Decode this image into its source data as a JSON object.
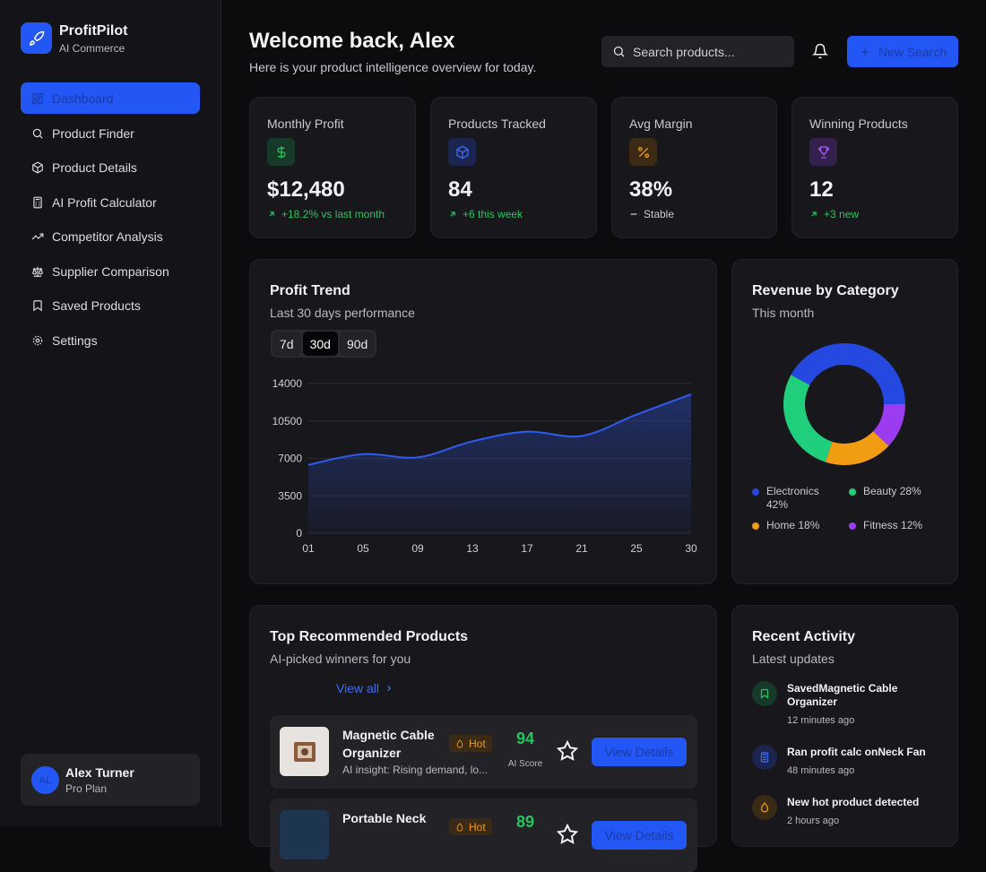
{
  "sidebar": {
    "brand": "ProfitPilot",
    "tagline": "AI Commerce",
    "nav": [
      "Dashboard",
      "Product Finder",
      "Product Details",
      "AI Profit Calculator",
      "Competitor Analysis",
      "Supplier Comparison",
      "Saved Products",
      "Settings"
    ],
    "user": {
      "initials": "AL",
      "name": "Alex Turner",
      "plan": "Pro Plan"
    }
  },
  "header": {
    "title": "Welcome back, Alex",
    "subtitle": "Here is your product intelligence overview for today.",
    "search_placeholder": "Search products...",
    "button": "New Search"
  },
  "stats": [
    {
      "label": "Monthly Profit",
      "value": "$12,480",
      "change": "+18.2% vs last month"
    },
    {
      "label": "Products Tracked",
      "value": "84",
      "change": "+6 this week"
    },
    {
      "label": "Avg Margin",
      "value": "38%",
      "change": "Stable"
    },
    {
      "label": "Winning Products",
      "value": "12",
      "change": "+3 new"
    }
  ],
  "profit_trend": {
    "ranges": [
      "7d",
      "30d",
      "90d"
    ]
  },
  "chart_data": [
    {
      "type": "area",
      "title": "Profit Trend",
      "subtitle": "Last 30 days performance",
      "categories": [
        "01",
        "05",
        "09",
        "13",
        "17",
        "21",
        "25",
        "30"
      ],
      "values": [
        6400,
        7400,
        7100,
        8600,
        9500,
        9100,
        11100,
        13000
      ],
      "color": "#2f5bf0",
      "ylim": [
        0,
        14000
      ],
      "yticks": [
        0,
        3500,
        7000,
        10500,
        14000
      ],
      "grid": true
    },
    {
      "type": "donut",
      "title": "Revenue by Category",
      "subtitle": "This month",
      "categories": [
        "Electronics",
        "Beauty",
        "Home",
        "Fitness"
      ],
      "values": [
        42,
        28,
        18,
        12
      ],
      "value_labels": [
        "42%",
        "28%",
        "18%",
        "12%"
      ],
      "colors": [
        "#2448e0",
        "#1fcf7c",
        "#f29c12",
        "#9b3cf0"
      ],
      "start_angle": 90,
      "direction": "counterclockwise"
    }
  ],
  "products": {
    "title": "Top Recommended Products",
    "subtitle": "AI-picked winners for you",
    "view_all": "View all",
    "items": [
      {
        "name": "Magnetic Cable Organizer",
        "badge": "Hot",
        "insight": "AI insight: Rising demand, lo...",
        "score": 94,
        "score_label": "AI Score",
        "button": "View Details"
      },
      {
        "name": "Portable Neck",
        "badge": "Hot",
        "score": 89,
        "button": "View Details"
      }
    ]
  },
  "activity": {
    "title": "Recent Activity",
    "subtitle": "Latest updates",
    "items": [
      {
        "text": "SavedMagnetic Cable Organizer",
        "time": "12 minutes ago"
      },
      {
        "text": "Ran profit calc onNeck Fan",
        "time": "48 minutes ago"
      },
      {
        "text": "New hot product detected",
        "time": "2 hours ago"
      }
    ]
  }
}
